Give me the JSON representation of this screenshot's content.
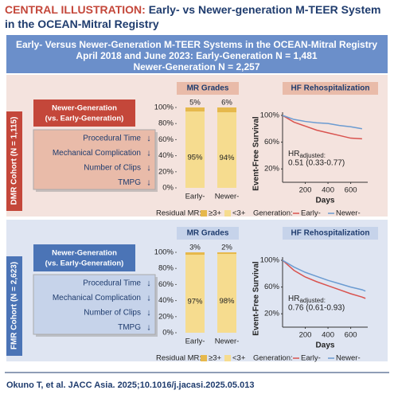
{
  "header": {
    "label": "CENTRAL ILLUSTRATION:",
    "title": "Early- vs Newer-generation M-TEER System in the OCEAN-Mitral Registry"
  },
  "summary": [
    "Early- Versus Newer-Generation M-TEER Systems in the OCEAN-Mitral Registry",
    "April 2018 and June 2023: Early-Generation N = 1,481",
    "Newer-Generation N = 2,257"
  ],
  "cohorts": [
    {
      "name": "DMR Cohort (N = 1,115)",
      "comparison": [
        "Newer-Generation",
        "(vs. Early-Generation)"
      ],
      "outcomes": [
        {
          "label": "Procedural Time",
          "change": "↓"
        },
        {
          "label": "Mechanical Complication",
          "change": "↓"
        },
        {
          "label": "Number of Clips",
          "change": "↓"
        },
        {
          "label": "TMPG",
          "change": "↓"
        }
      ]
    },
    {
      "name": "FMR Cohort (N = 2,623)",
      "comparison": [
        "Newer-Generation",
        "(vs. Early-Generation)"
      ],
      "outcomes": [
        {
          "label": "Procedural Time",
          "change": "↓"
        },
        {
          "label": "Mechanical Complication",
          "change": "↓"
        },
        {
          "label": "Number of Clips",
          "change": "↓"
        },
        {
          "label": "TMPG",
          "change": "↓"
        }
      ]
    }
  ],
  "chart_data": [
    {
      "type": "bar",
      "stacked": true,
      "title": "MR Grades",
      "categories": [
        "Early-",
        "Newer-"
      ],
      "series": [
        {
          "name": "<3+",
          "color": "#f6dc8f",
          "values": [
            95,
            94
          ],
          "value_labels": [
            "95%",
            "94%"
          ]
        },
        {
          "name": "≥3+",
          "color": "#e6b84c",
          "values": [
            5,
            6
          ],
          "value_labels": [
            "5%",
            "6%"
          ]
        }
      ],
      "legend_title": "Residual MR:",
      "ylim": [
        0,
        100
      ],
      "yticks": [
        {
          "value": 0,
          "label": "0%"
        },
        {
          "value": 20,
          "label": "20%"
        },
        {
          "value": 40,
          "label": "40%"
        },
        {
          "value": 60,
          "label": "60%"
        },
        {
          "value": 80,
          "label": "80%"
        },
        {
          "value": 100,
          "label": "100%"
        }
      ]
    },
    {
      "type": "line",
      "title": "HF Rehospitalization",
      "x": [
        0,
        100,
        200,
        300,
        400,
        500,
        600,
        700
      ],
      "series": [
        {
          "name": "Early-",
          "color": "#d9534f",
          "values": [
            100,
            90,
            84,
            78,
            74,
            70,
            66,
            65
          ]
        },
        {
          "name": "Newer-",
          "color": "#6b9bd1",
          "values": [
            100,
            94,
            91,
            89,
            88,
            85,
            83,
            80
          ]
        }
      ],
      "legend_title": "Generation:",
      "xlabel": "Days",
      "ylabel": "Event-Free Survival",
      "annotation": {
        "text": "HR",
        "subscript": "adjusted:",
        "value": "0.51 (0.33-0.77)"
      },
      "xlim": [
        0,
        750
      ],
      "ylim": [
        0,
        100
      ],
      "xticks": [
        200,
        400,
        600
      ],
      "yticks": [
        {
          "value": 20,
          "label": "20%"
        },
        {
          "value": 60,
          "label": "60%"
        },
        {
          "value": 100,
          "label": "100%"
        }
      ]
    },
    {
      "type": "bar",
      "stacked": true,
      "title": "MR Grades",
      "categories": [
        "Early-",
        "Newer-"
      ],
      "series": [
        {
          "name": "<3+",
          "color": "#f6dc8f",
          "values": [
            97,
            98
          ],
          "value_labels": [
            "97%",
            "98%"
          ]
        },
        {
          "name": "≥3+",
          "color": "#e6b84c",
          "values": [
            3,
            2
          ],
          "value_labels": [
            "3%",
            "2%"
          ]
        }
      ],
      "legend_title": "Residual MR:",
      "ylim": [
        0,
        100
      ],
      "yticks": [
        {
          "value": 0,
          "label": "0%"
        },
        {
          "value": 20,
          "label": "20%"
        },
        {
          "value": 40,
          "label": "40%"
        },
        {
          "value": 60,
          "label": "60%"
        },
        {
          "value": 80,
          "label": "80%"
        },
        {
          "value": 100,
          "label": "100%"
        }
      ]
    },
    {
      "type": "line",
      "title": "HF Rehospitalization",
      "x": [
        0,
        100,
        200,
        300,
        400,
        500,
        600,
        700,
        730
      ],
      "series": [
        {
          "name": "Early-",
          "color": "#d9534f",
          "values": [
            100,
            85,
            75,
            68,
            62,
            56,
            50,
            45,
            43
          ]
        },
        {
          "name": "Newer-",
          "color": "#6b9bd1",
          "values": [
            100,
            90,
            82,
            76,
            70,
            65,
            60,
            56,
            54
          ]
        }
      ],
      "legend_title": "Generation:",
      "xlabel": "Days",
      "ylabel": "Event-Free Survival",
      "annotation": {
        "text": "HR",
        "subscript": "adjusted:",
        "value": "0.76 (0.61-0.93)"
      },
      "xlim": [
        0,
        750
      ],
      "ylim": [
        0,
        100
      ],
      "xticks": [
        200,
        400,
        600
      ],
      "yticks": [
        {
          "value": 20,
          "label": "20%"
        },
        {
          "value": 60,
          "label": "60%"
        },
        {
          "value": 100,
          "label": "100%"
        }
      ]
    }
  ],
  "citation": "Okuno T, et al. JACC Asia. 2025;10.1016/j.jacasi.2025.05.013"
}
